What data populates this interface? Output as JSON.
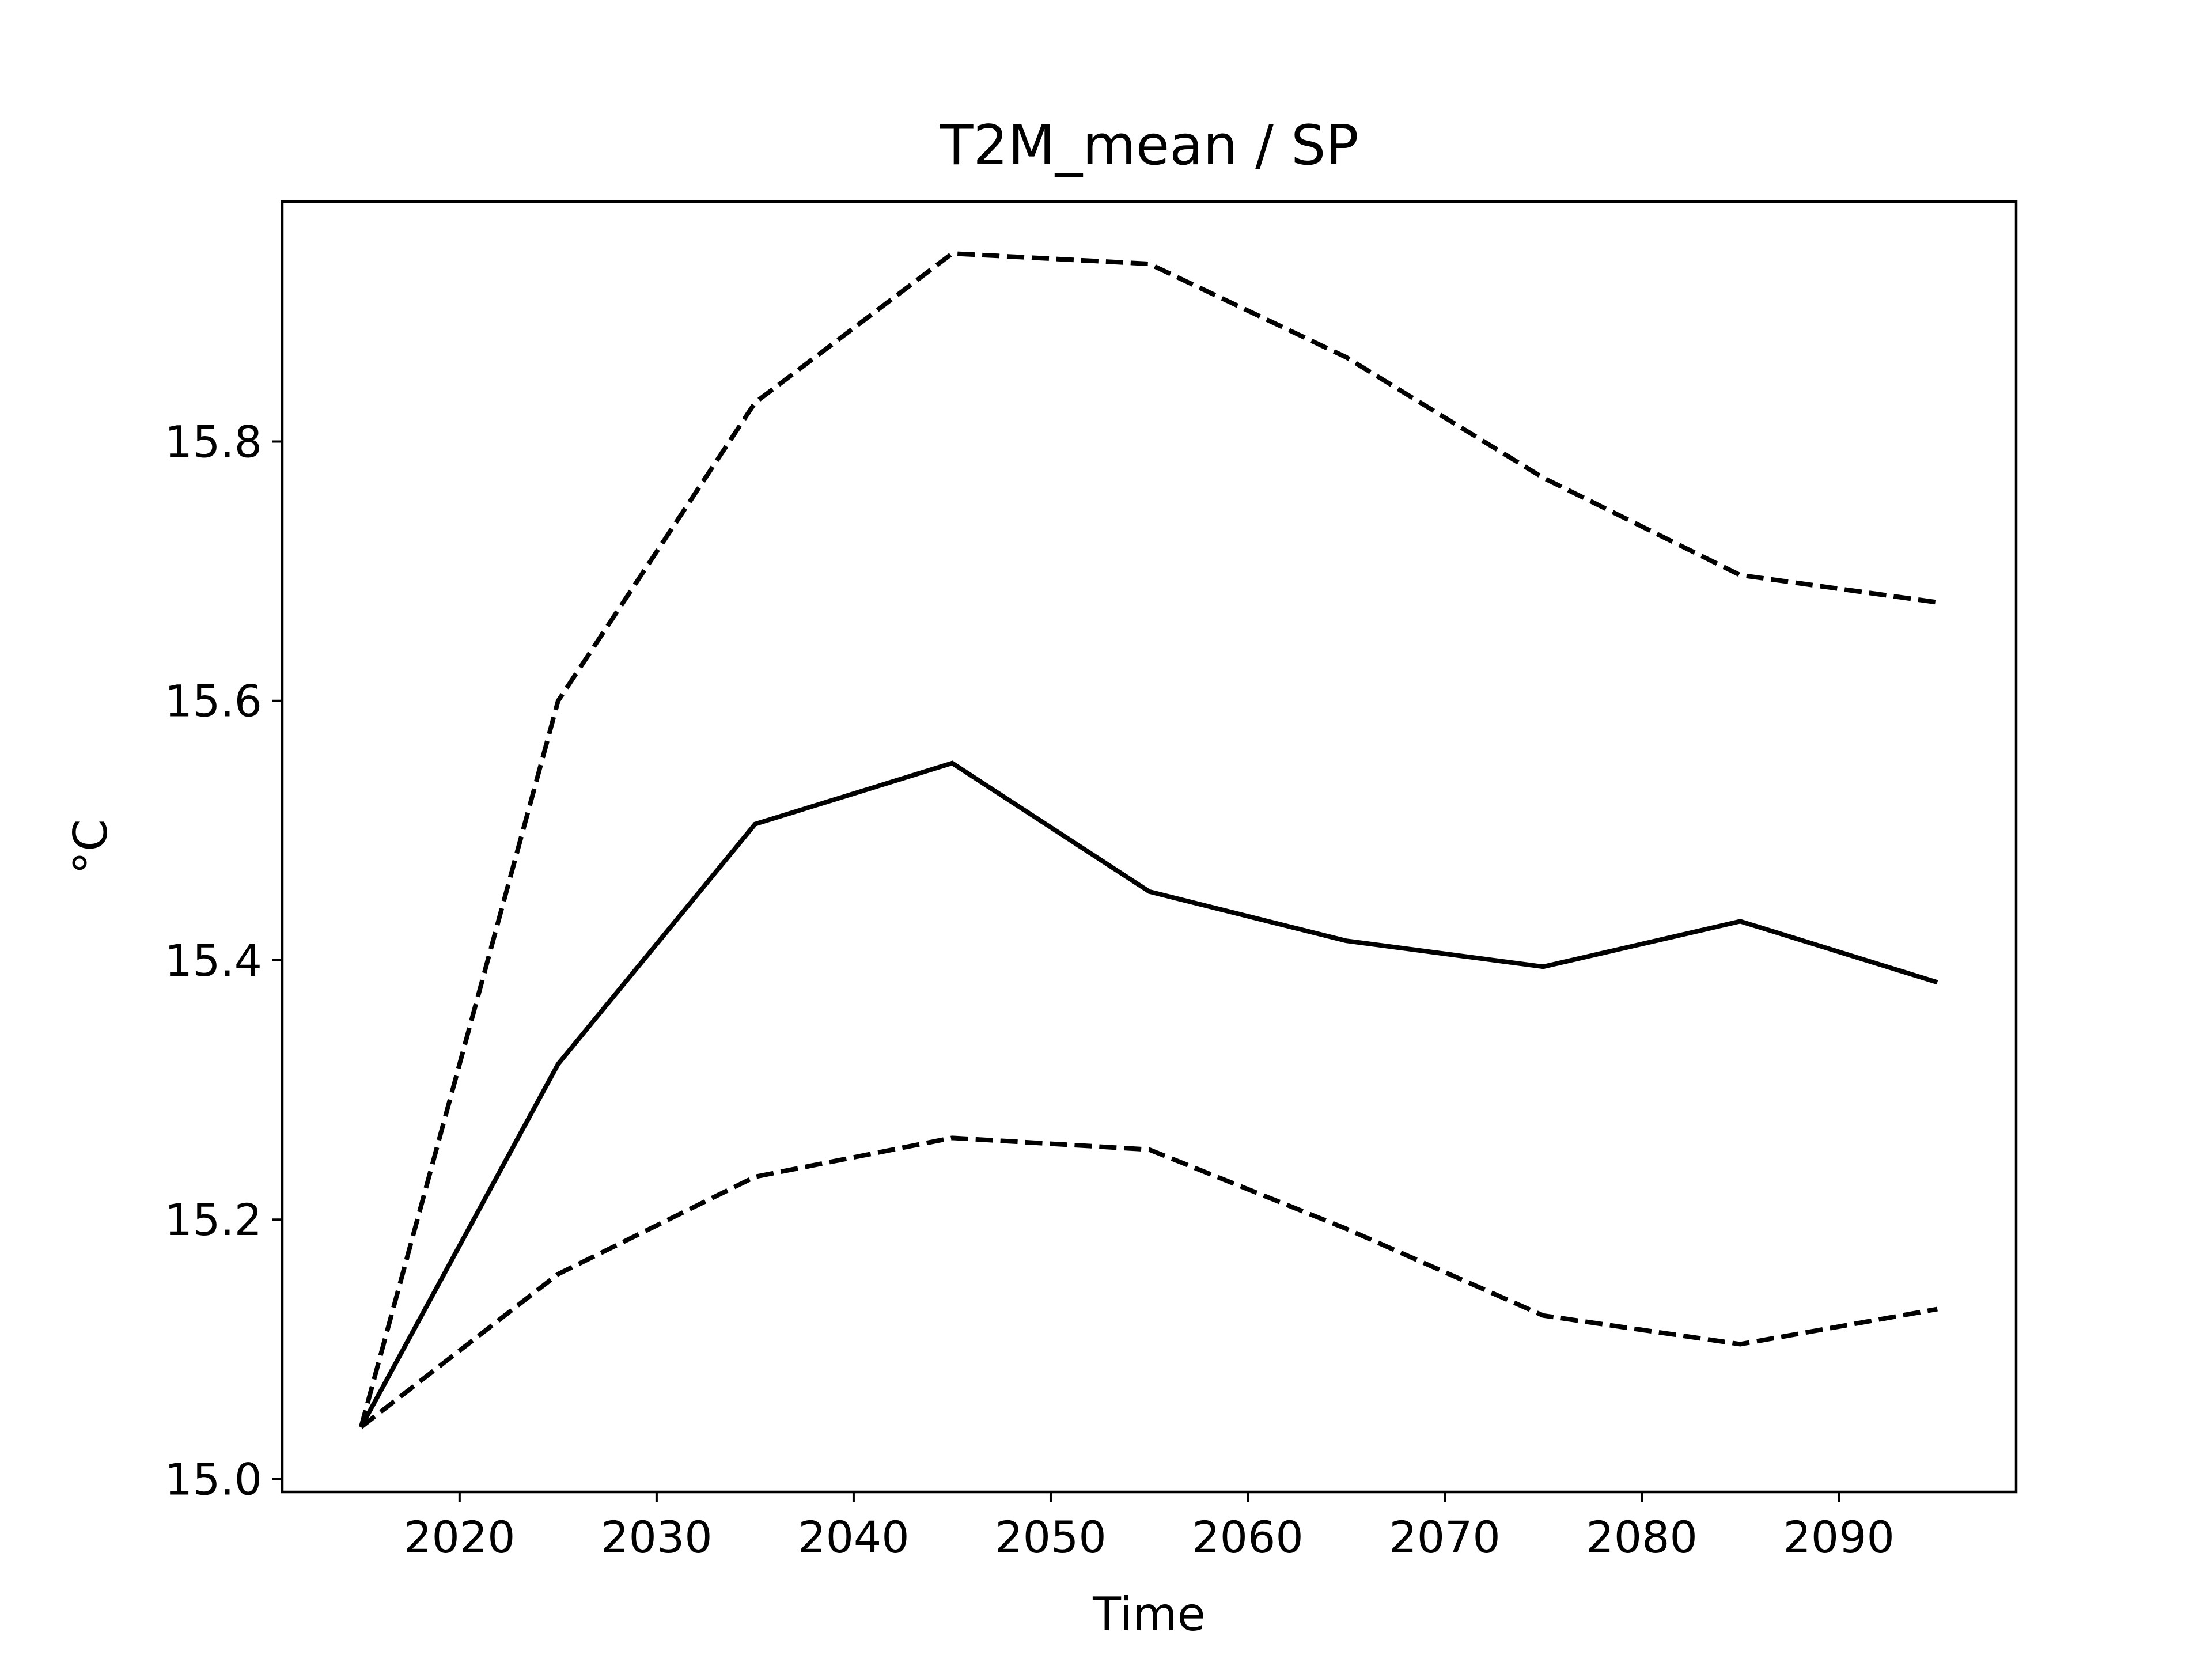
{
  "chart_data": {
    "type": "line",
    "title": "T2M_mean / SP",
    "xlabel": "Time",
    "ylabel": "°C",
    "xlim": [
      2011,
      2099
    ],
    "ylim": [
      14.99,
      15.985
    ],
    "xticks": [
      2020,
      2030,
      2040,
      2050,
      2060,
      2070,
      2080,
      2090
    ],
    "yticks": [
      15.0,
      15.2,
      15.4,
      15.6,
      15.8
    ],
    "ytick_labels": [
      "15.0",
      "15.2",
      "15.4",
      "15.6",
      "15.8"
    ],
    "grid": false,
    "x": [
      2015,
      2025,
      2035,
      2045,
      2055,
      2065,
      2075,
      2085,
      2095
    ],
    "series": [
      {
        "style": "solid",
        "color": "#000000",
        "values": [
          15.04,
          15.32,
          15.505,
          15.552,
          15.453,
          15.415,
          15.395,
          15.43,
          15.383
        ]
      },
      {
        "style": "dashed",
        "color": "#000000",
        "values": [
          15.04,
          15.6,
          15.83,
          15.945,
          15.937,
          15.865,
          15.772,
          15.697,
          15.676
        ]
      },
      {
        "style": "dashed",
        "color": "#000000",
        "values": [
          15.04,
          15.158,
          15.233,
          15.263,
          15.254,
          15.193,
          15.126,
          15.104,
          15.131
        ]
      }
    ]
  }
}
